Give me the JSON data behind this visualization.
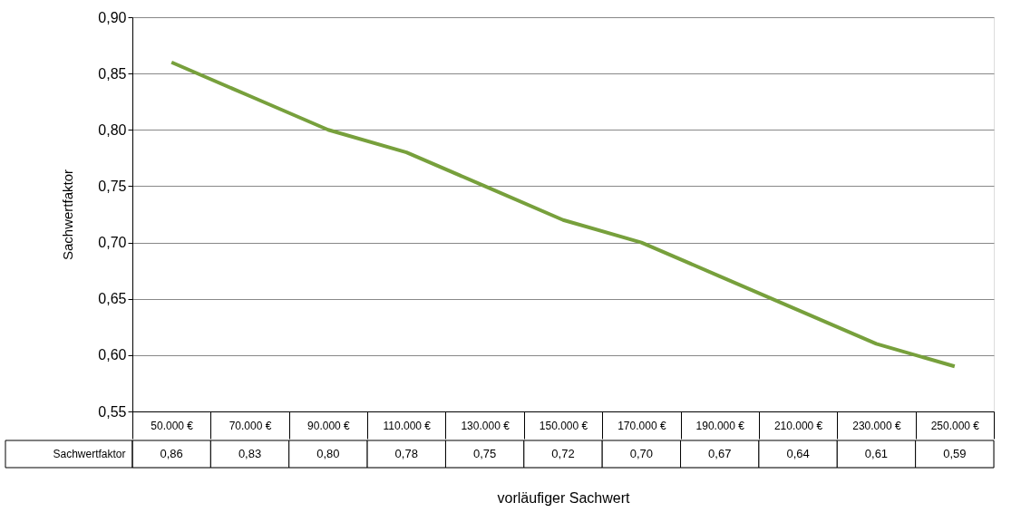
{
  "chart_data": {
    "type": "line",
    "xlabel": "vorläufiger Sachwert",
    "ylabel": "Sachwertfaktor",
    "categories": [
      "50.000 €",
      "70.000 €",
      "90.000 €",
      "110.000 €",
      "130.000 €",
      "150.000 €",
      "170.000 €",
      "190.000 €",
      "210.000 €",
      "230.000 €",
      "250.000 €"
    ],
    "series": [
      {
        "name": "Sachwertfaktor",
        "color": "#77a03c",
        "values": [
          0.86,
          0.83,
          0.8,
          0.78,
          0.75,
          0.72,
          0.7,
          0.67,
          0.64,
          0.61,
          0.59
        ],
        "value_labels": [
          "0,86",
          "0,83",
          "0,80",
          "0,78",
          "0,75",
          "0,72",
          "0,70",
          "0,67",
          "0,64",
          "0,61",
          "0,59"
        ]
      }
    ],
    "ylim": [
      0.55,
      0.9
    ],
    "yticks": [
      {
        "value": 0.55,
        "label": "0,55"
      },
      {
        "value": 0.6,
        "label": "0,60"
      },
      {
        "value": 0.65,
        "label": "0,65"
      },
      {
        "value": 0.7,
        "label": "0,70"
      },
      {
        "value": 0.75,
        "label": "0,75"
      },
      {
        "value": 0.8,
        "label": "0,80"
      },
      {
        "value": 0.85,
        "label": "0,85"
      },
      {
        "value": 0.9,
        "label": "0,90"
      }
    ],
    "grid": "y",
    "marker": "none",
    "line_style": "solid"
  }
}
